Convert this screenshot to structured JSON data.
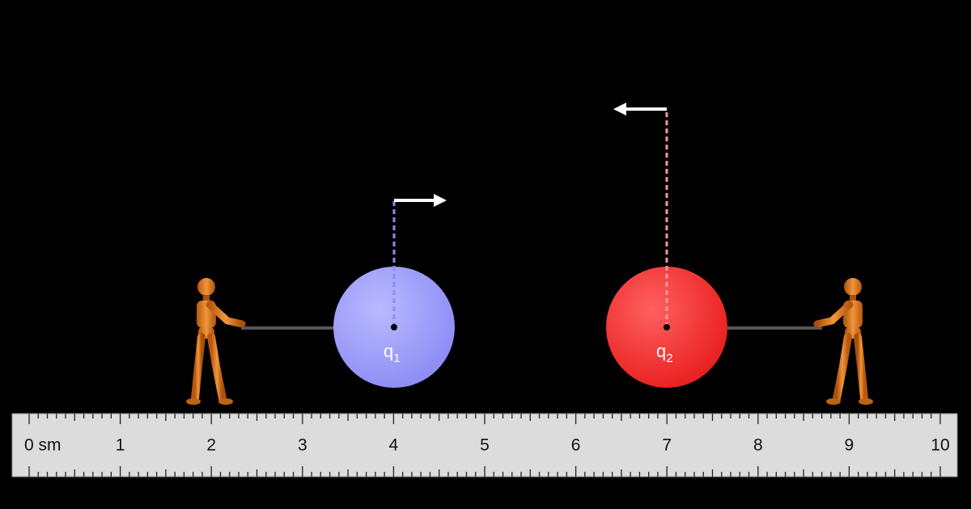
{
  "charges": [
    {
      "letter": "q",
      "subscript": "1"
    },
    {
      "letter": "q",
      "subscript": "2"
    }
  ],
  "ruler": {
    "labels": [
      "0 sm",
      "1",
      "2",
      "3",
      "4",
      "5",
      "6",
      "7",
      "8",
      "9",
      "10"
    ]
  }
}
